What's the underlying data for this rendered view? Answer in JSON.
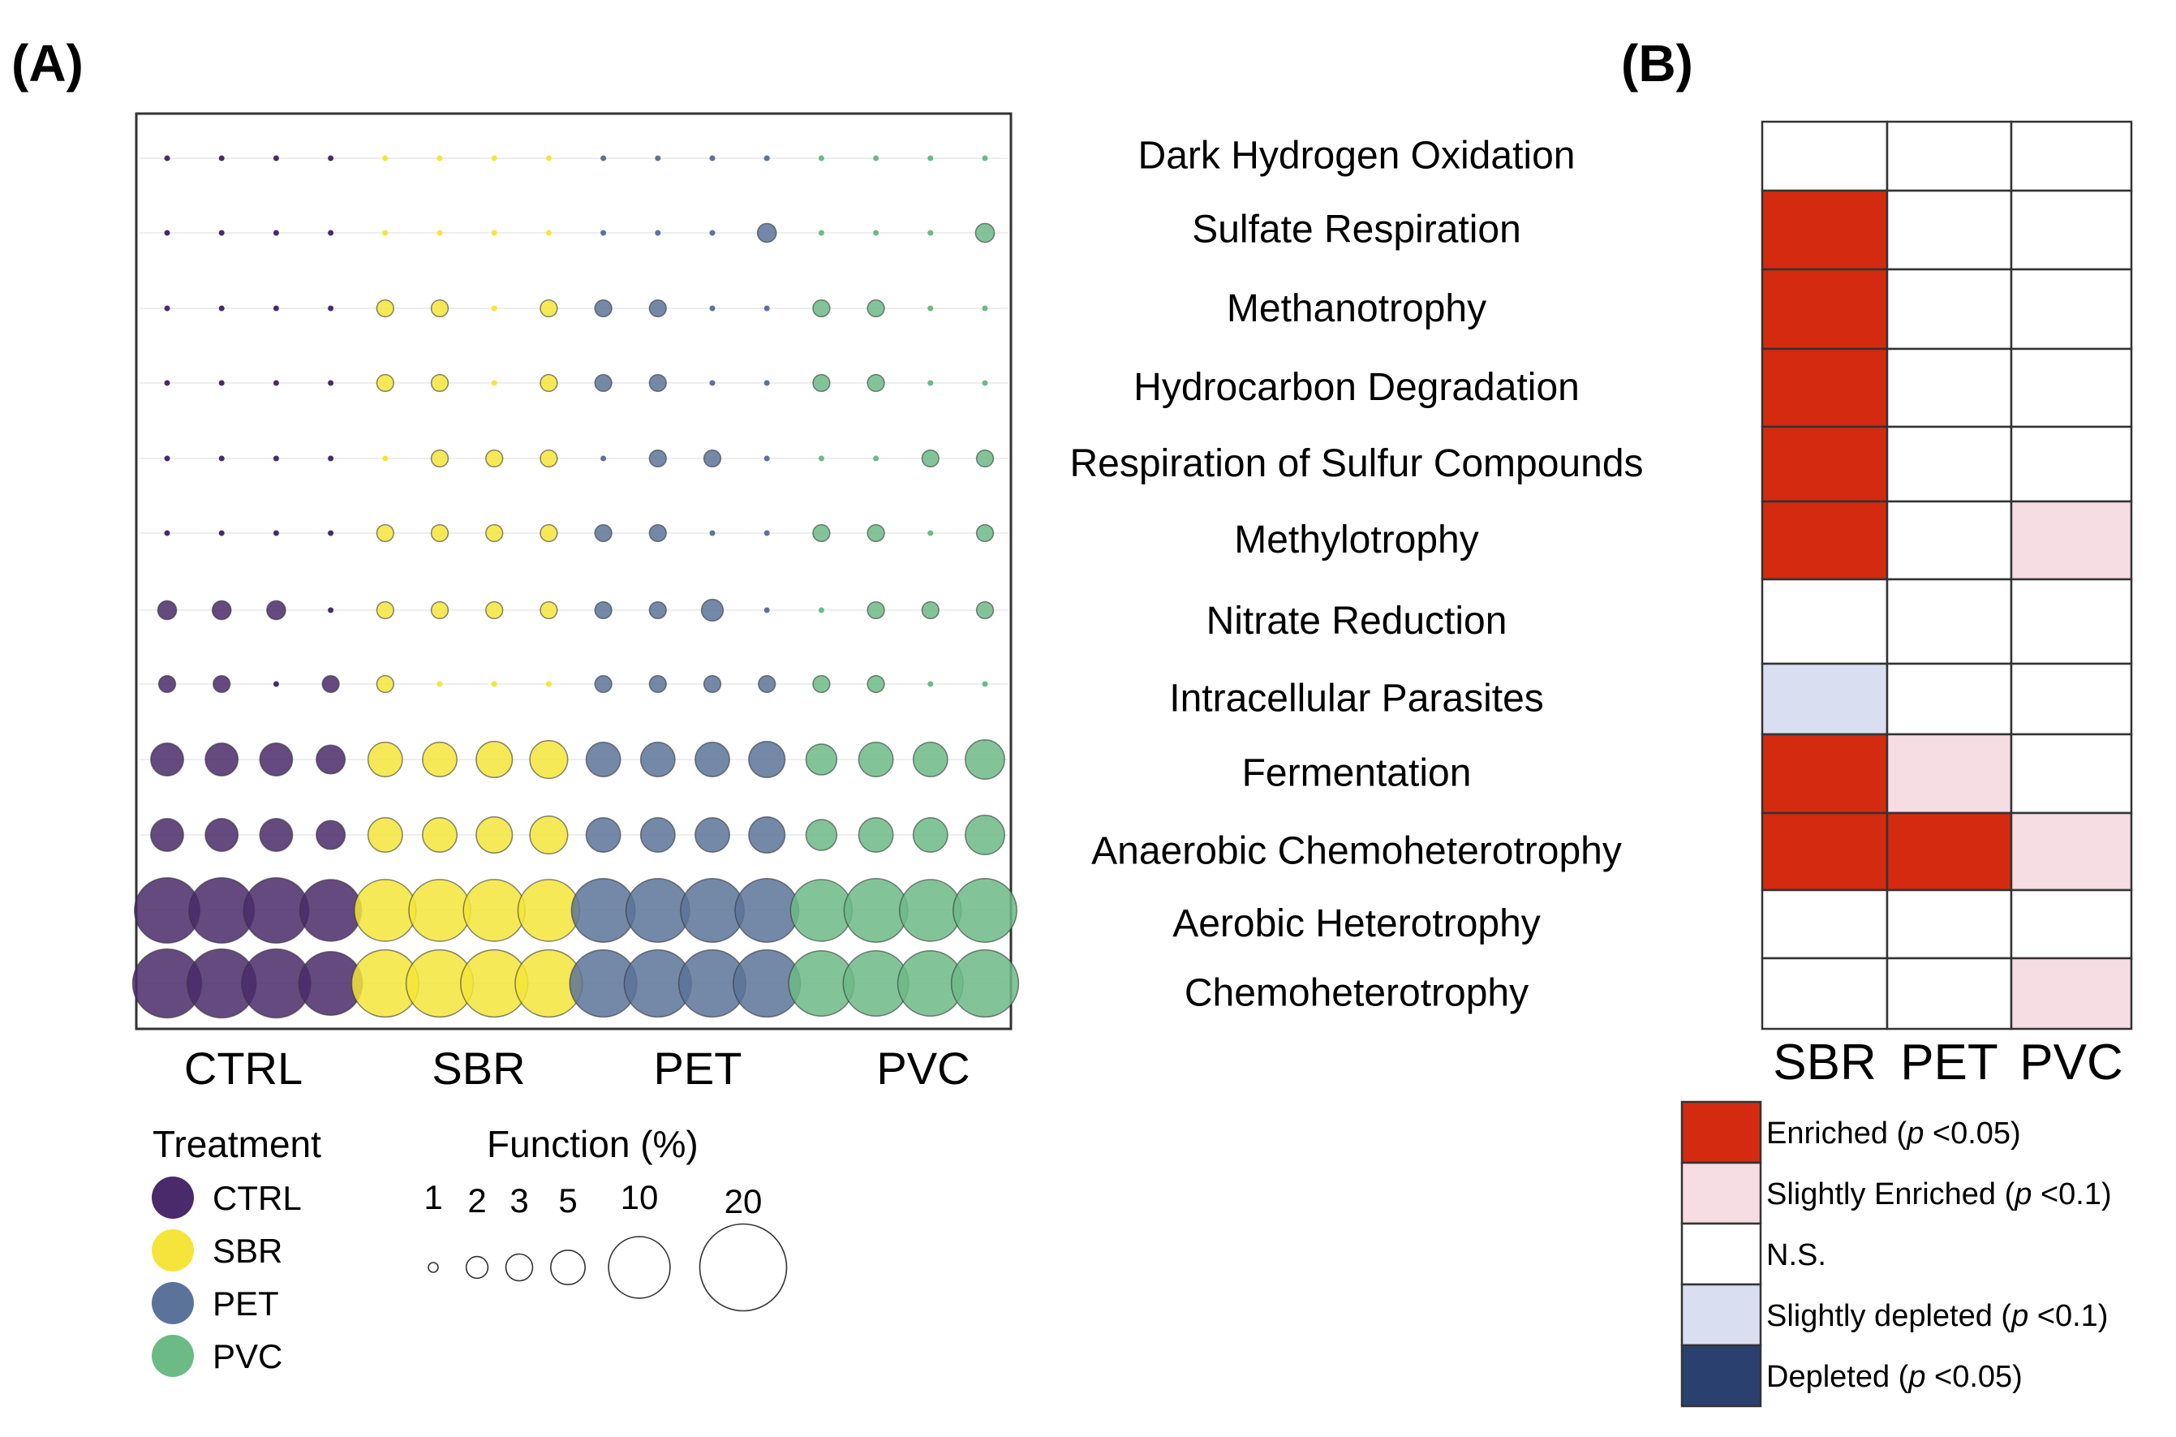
{
  "panel_a_label": "(A)",
  "panel_b_label": "(B)",
  "chart_data": [
    {
      "type": "scatter",
      "subtype": "bubble-grid",
      "panel": "A",
      "title": "",
      "rows": [
        "Dark Hydrogen Oxidation",
        "Sulfate Respiration",
        "Methanotrophy",
        "Hydrocarbon Degradation",
        "Respiration of Sulfur Compounds",
        "Methylotrophy",
        "Nitrate Reduction",
        "Intracellular Parasites",
        "Fermentation",
        "Anaerobic Chemoheterotrophy",
        "Aerobic Heterotrophy",
        "Chemoheterotrophy"
      ],
      "groups": [
        "CTRL",
        "SBR",
        "PET",
        "PVC"
      ],
      "replicates_per_group": 4,
      "values": [
        [
          0.1,
          0.1,
          0.1,
          0.1,
          0.1,
          0.1,
          0.1,
          0.1,
          0.1,
          0.1,
          0.1,
          0.1,
          0.1,
          0.1,
          0.1,
          0.1
        ],
        [
          0.1,
          0.1,
          0.1,
          0.1,
          0.1,
          0.1,
          0.1,
          0.1,
          0.1,
          0.1,
          0.1,
          1.5,
          0.1,
          0.1,
          0.1,
          1.5
        ],
        [
          0.1,
          0.1,
          0.1,
          0.1,
          1.2,
          1.2,
          0.1,
          1.2,
          1.2,
          1.2,
          0.1,
          0.1,
          1.2,
          1.2,
          0.1,
          0.1
        ],
        [
          0.1,
          0.1,
          0.1,
          0.1,
          1.2,
          1.2,
          0.1,
          1.2,
          1.2,
          1.2,
          0.1,
          0.1,
          1.2,
          1.2,
          0.1,
          0.1
        ],
        [
          0.1,
          0.1,
          0.1,
          0.1,
          0.1,
          1.2,
          1.2,
          1.2,
          0.1,
          1.2,
          1.2,
          0.1,
          0.1,
          0.1,
          1.2,
          1.2
        ],
        [
          0.1,
          0.1,
          0.1,
          0.1,
          1.2,
          1.2,
          1.2,
          1.2,
          1.2,
          1.2,
          0.1,
          0.1,
          1.2,
          1.2,
          0.1,
          1.2
        ],
        [
          1.5,
          1.5,
          1.5,
          0.1,
          1.2,
          1.2,
          1.2,
          1.2,
          1.2,
          1.2,
          2.0,
          0.1,
          0.1,
          1.2,
          1.2,
          1.2
        ],
        [
          1.2,
          1.2,
          0.1,
          1.2,
          1.2,
          0.1,
          0.1,
          0.1,
          1.2,
          1.2,
          1.2,
          1.2,
          1.2,
          1.2,
          0.1,
          0.1
        ],
        [
          4.5,
          4.5,
          4.5,
          3.5,
          5,
          5,
          5.5,
          6,
          5,
          5,
          5,
          5.5,
          4,
          5,
          5,
          6.5
        ],
        [
          4.5,
          4.5,
          4.5,
          3.5,
          5,
          5,
          5.5,
          6,
          5,
          5,
          5,
          5.5,
          4,
          5,
          5,
          6.5
        ],
        [
          18,
          18,
          18,
          16,
          16,
          16,
          16,
          16,
          17,
          17,
          17,
          17,
          16,
          17,
          16,
          17
        ],
        [
          20,
          20,
          20,
          17,
          19,
          19,
          19,
          19,
          19,
          19,
          19,
          19,
          18,
          18,
          18,
          19
        ]
      ],
      "group_labels": [
        "CTRL",
        "SBR",
        "PET",
        "PVC"
      ],
      "legend_treatment": {
        "title": "Treatment",
        "items": [
          {
            "label": "CTRL",
            "color": "#4a2a6a"
          },
          {
            "label": "SBR",
            "color": "#f5e53a"
          },
          {
            "label": "PET",
            "color": "#5c7399"
          },
          {
            "label": "PVC",
            "color": "#6cba86"
          }
        ]
      },
      "legend_size": {
        "title": "Function (%)",
        "items": [
          {
            "label": "1",
            "value": 1
          },
          {
            "label": "2",
            "value": 2
          },
          {
            "label": "3",
            "value": 3
          },
          {
            "label": "5",
            "value": 5
          },
          {
            "label": "10",
            "value": 10
          },
          {
            "label": "20",
            "value": 20
          }
        ]
      }
    },
    {
      "type": "heatmap",
      "panel": "B",
      "rows": [
        "Dark Hydrogen Oxidation",
        "Sulfate Respiration",
        "Methanotrophy",
        "Hydrocarbon Degradation",
        "Respiration of Sulfur Compounds",
        "Methylotrophy",
        "Nitrate Reduction",
        "Intracellular Parasites",
        "Fermentation",
        "Anaerobic Chemoheterotrophy",
        "Aerobic Heterotrophy",
        "Chemoheterotrophy"
      ],
      "columns": [
        "SBR",
        "PET",
        "PVC"
      ],
      "cells": [
        [
          "N.S.",
          "N.S.",
          "N.S."
        ],
        [
          "Enriched",
          "N.S.",
          "N.S."
        ],
        [
          "Enriched",
          "N.S.",
          "N.S."
        ],
        [
          "Enriched",
          "N.S.",
          "N.S."
        ],
        [
          "Enriched",
          "N.S.",
          "N.S."
        ],
        [
          "Enriched",
          "N.S.",
          "Slightly Enriched"
        ],
        [
          "N.S.",
          "N.S.",
          "N.S."
        ],
        [
          "Slightly depleted",
          "N.S.",
          "N.S."
        ],
        [
          "Enriched",
          "Slightly Enriched",
          "N.S."
        ],
        [
          "Enriched",
          "Enriched",
          "Slightly Enriched"
        ],
        [
          "N.S.",
          "N.S.",
          "N.S."
        ],
        [
          "N.S.",
          "N.S.",
          "Slightly Enriched"
        ]
      ],
      "categories": [
        {
          "key": "Enriched",
          "color": "#d42a10",
          "label_pre": "Enriched (",
          "p": "p",
          "label_post": " <0.05)"
        },
        {
          "key": "Slightly Enriched",
          "color": "#f5dde3",
          "label_pre": "Slightly Enriched (",
          "p": "p",
          "label_post": " <0.1)"
        },
        {
          "key": "N.S.",
          "color": "#ffffff",
          "label_pre": "N.S.",
          "p": "",
          "label_post": ""
        },
        {
          "key": "Slightly depleted",
          "color": "#d9dff0",
          "label_pre": "Slightly depleted (",
          "p": "p",
          "label_post": " <0.1)"
        },
        {
          "key": "Depleted",
          "color": "#2a4170",
          "label_pre": "Depleted (",
          "p": "p",
          "label_post": " <0.05)"
        }
      ]
    }
  ]
}
